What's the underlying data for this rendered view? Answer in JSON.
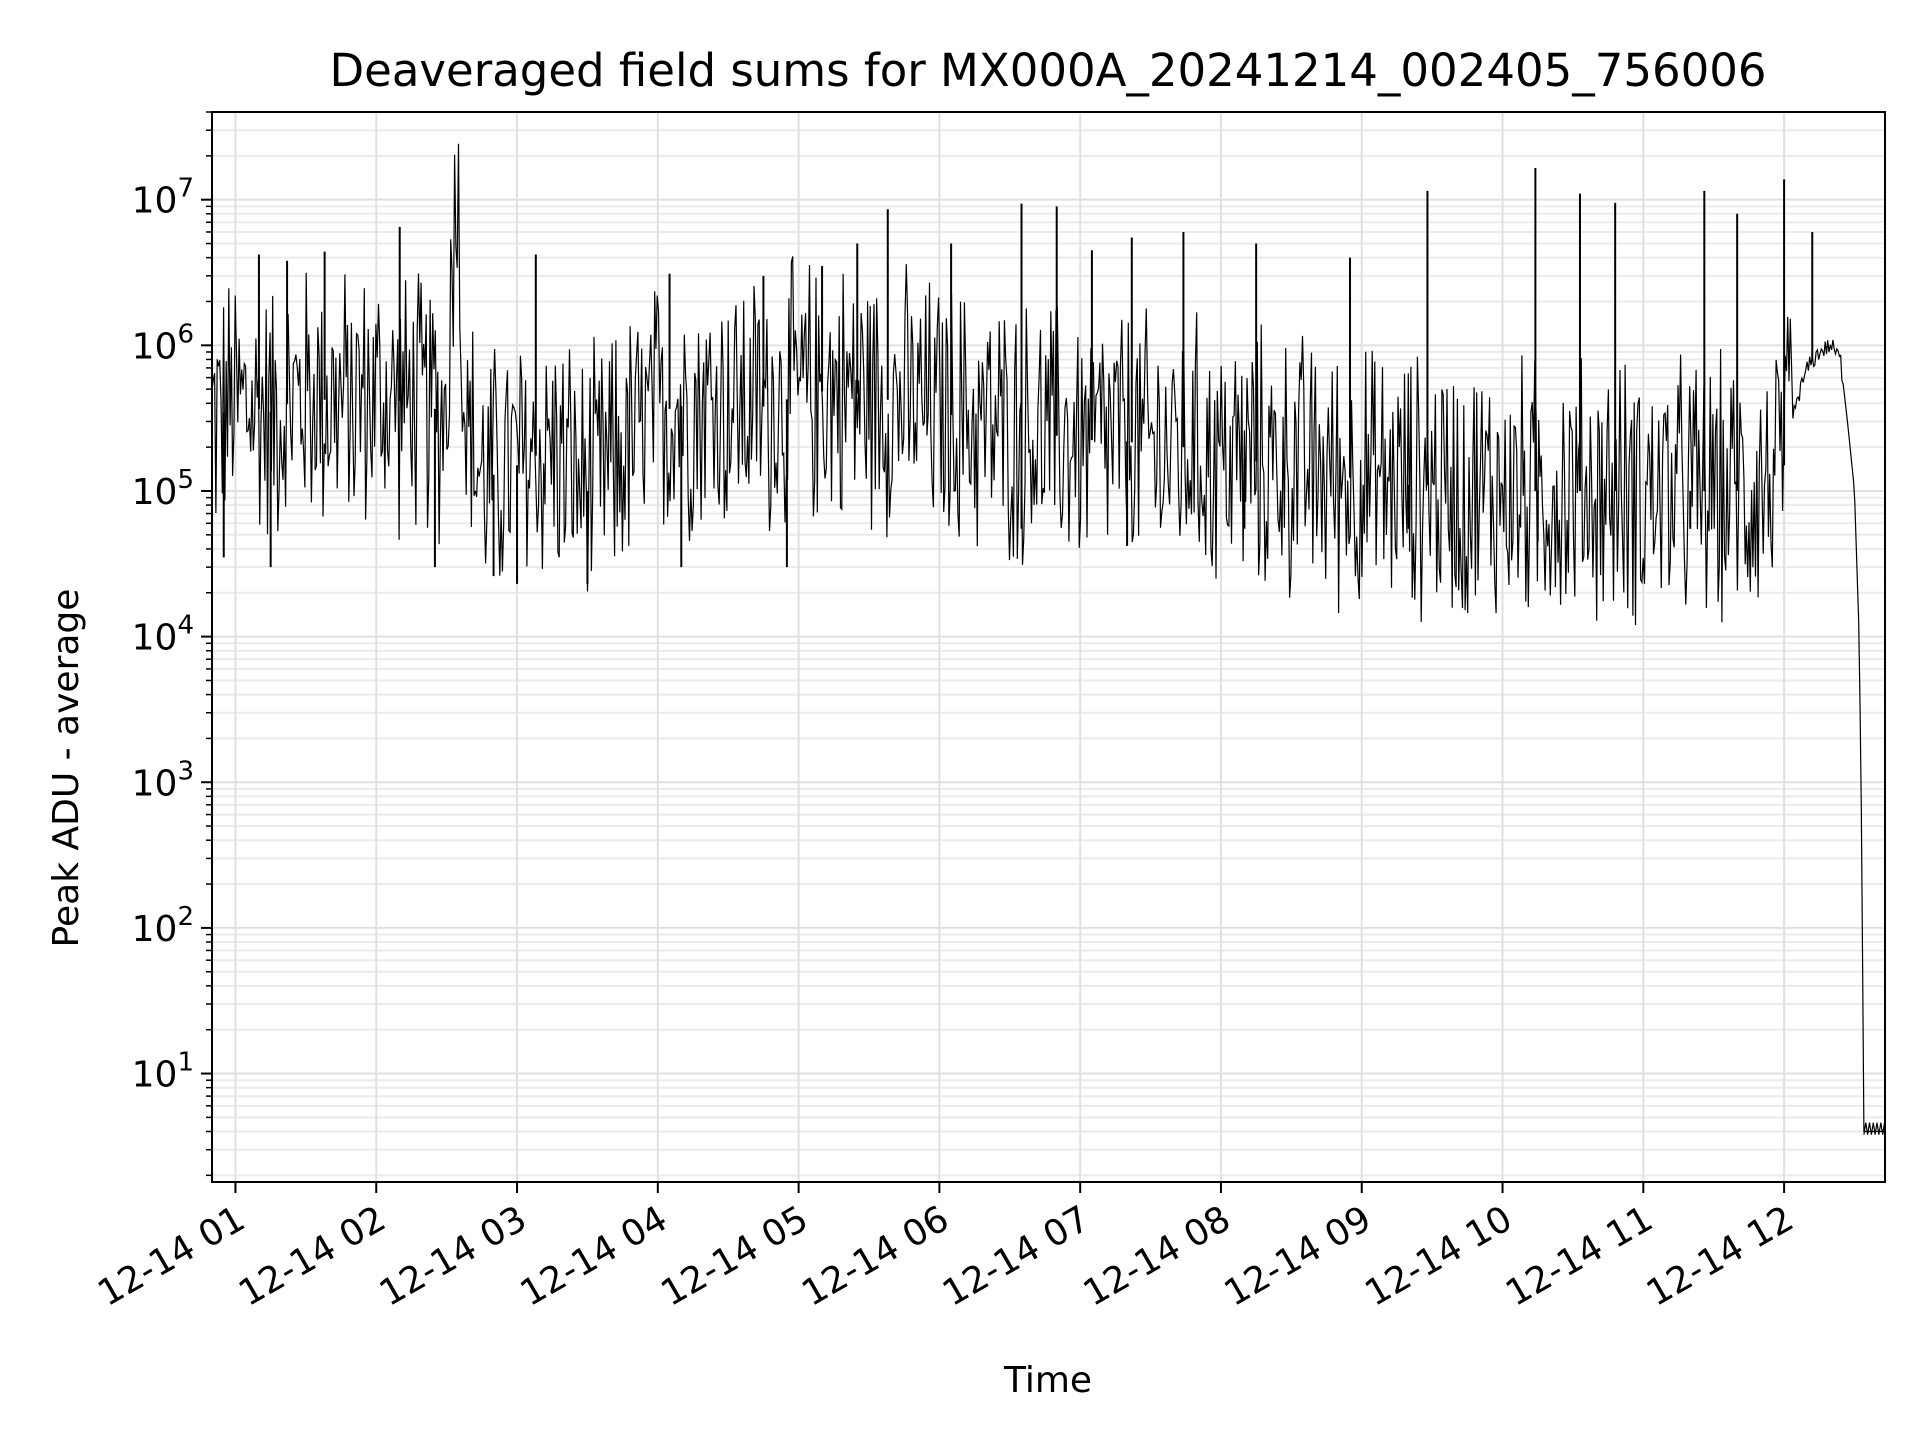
{
  "chart_data": {
    "type": "line",
    "title": "Deaveraged field sums for MX000A_20241214_002405_756006",
    "xlabel": "Time",
    "ylabel": "Peak ADU - average",
    "yscale": "log",
    "ylim": [
      1.8,
      40000000
    ],
    "xlim": [
      "2024-12-14 00:50",
      "2024-12-14 12:43"
    ],
    "grid": true,
    "x_ticks": [
      {
        "label": "12-14 01",
        "value": "2024-12-14 01:00"
      },
      {
        "label": "12-14 02",
        "value": "2024-12-14 02:00"
      },
      {
        "label": "12-14 03",
        "value": "2024-12-14 03:00"
      },
      {
        "label": "12-14 04",
        "value": "2024-12-14 04:00"
      },
      {
        "label": "12-14 05",
        "value": "2024-12-14 05:00"
      },
      {
        "label": "12-14 06",
        "value": "2024-12-14 06:00"
      },
      {
        "label": "12-14 07",
        "value": "2024-12-14 07:00"
      },
      {
        "label": "12-14 08",
        "value": "2024-12-14 08:00"
      },
      {
        "label": "12-14 09",
        "value": "2024-12-14 09:00"
      },
      {
        "label": "12-14 10",
        "value": "2024-12-14 10:00"
      },
      {
        "label": "12-14 11",
        "value": "2024-12-14 11:00"
      },
      {
        "label": "12-14 12",
        "value": "2024-12-14 12:00"
      }
    ],
    "y_ticks": [
      {
        "base": "10",
        "exp": "1",
        "value": 10
      },
      {
        "base": "10",
        "exp": "2",
        "value": 100
      },
      {
        "base": "10",
        "exp": "3",
        "value": 1000
      },
      {
        "base": "10",
        "exp": "4",
        "value": 10000
      },
      {
        "base": "10",
        "exp": "5",
        "value": 100000
      },
      {
        "base": "10",
        "exp": "6",
        "value": 1000000
      },
      {
        "base": "10",
        "exp": "7",
        "value": 10000000
      }
    ],
    "series": [
      {
        "color": "#000000",
        "points": [
          [
            "2024-12-14 00:50",
            300000
          ],
          [
            "2024-12-14 01:00",
            400000
          ],
          [
            "2024-12-14 01:15",
            350000
          ],
          [
            "2024-12-14 01:30",
            450000
          ],
          [
            "2024-12-14 01:45",
            400000
          ],
          [
            "2024-12-14 02:00",
            450000
          ],
          [
            "2024-12-14 02:15",
            400000
          ],
          [
            "2024-12-14 02:30",
            350000
          ],
          [
            "2024-12-14 02:34",
            20000000
          ],
          [
            "2024-12-14 02:38",
            300000
          ],
          [
            "2024-12-14 02:45",
            120000
          ],
          [
            "2024-12-14 03:00",
            150000
          ],
          [
            "2024-12-14 03:15",
            200000
          ],
          [
            "2024-12-14 03:30",
            100000
          ],
          [
            "2024-12-14 03:45",
            180000
          ],
          [
            "2024-12-14 04:00",
            350000
          ],
          [
            "2024-12-14 04:15",
            400000
          ],
          [
            "2024-12-14 04:30",
            400000
          ],
          [
            "2024-12-14 04:45",
            380000
          ],
          [
            "2024-12-14 05:00",
            450000
          ],
          [
            "2024-12-14 05:15",
            500000
          ],
          [
            "2024-12-14 05:30",
            450000
          ],
          [
            "2024-12-14 05:45",
            400000
          ],
          [
            "2024-12-14 06:00",
            350000
          ],
          [
            "2024-12-14 06:15",
            300000
          ],
          [
            "2024-12-14 06:30",
            250000
          ],
          [
            "2024-12-14 06:45",
            250000
          ],
          [
            "2024-12-14 07:00",
            220000
          ],
          [
            "2024-12-14 07:15",
            230000
          ],
          [
            "2024-12-14 07:30",
            200000
          ],
          [
            "2024-12-14 07:45",
            200000
          ],
          [
            "2024-12-14 08:00",
            170000
          ],
          [
            "2024-12-14 08:15",
            160000
          ],
          [
            "2024-12-14 08:30",
            150000
          ],
          [
            "2024-12-14 08:45",
            130000
          ],
          [
            "2024-12-14 09:00",
            120000
          ],
          [
            "2024-12-14 09:15",
            110000
          ],
          [
            "2024-12-14 09:30",
            110000
          ],
          [
            "2024-12-14 09:45",
            100000
          ],
          [
            "2024-12-14 10:00",
            100000
          ],
          [
            "2024-12-14 10:15",
            100000
          ],
          [
            "2024-12-14 10:30",
            100000
          ],
          [
            "2024-12-14 10:45",
            100000
          ],
          [
            "2024-12-14 11:00",
            100000
          ],
          [
            "2024-12-14 11:15",
            100000
          ],
          [
            "2024-12-14 11:30",
            100000
          ],
          [
            "2024-12-14 11:45",
            100000
          ],
          [
            "2024-12-14 12:00",
            150000
          ],
          [
            "2024-12-14 12:05",
            400000
          ],
          [
            "2024-12-14 12:10",
            700000
          ],
          [
            "2024-12-14 12:15",
            900000
          ],
          [
            "2024-12-14 12:20",
            1000000
          ],
          [
            "2024-12-14 12:24",
            800000
          ],
          [
            "2024-12-14 12:27",
            300000
          ],
          [
            "2024-12-14 12:30",
            100000
          ],
          [
            "2024-12-14 12:32",
            10000
          ],
          [
            "2024-12-14 12:33",
            500
          ],
          [
            "2024-12-14 12:34",
            4
          ],
          [
            "2024-12-14 12:43",
            4
          ]
        ],
        "spikes": [
          [
            "2024-12-14 01:10",
            4200000
          ],
          [
            "2024-12-14 01:22",
            3800000
          ],
          [
            "2024-12-14 01:38",
            4400000
          ],
          [
            "2024-12-14 02:10",
            6500000
          ],
          [
            "2024-12-14 02:34",
            20000000
          ],
          [
            "2024-12-14 03:08",
            4200000
          ],
          [
            "2024-12-14 04:05",
            3100000
          ],
          [
            "2024-12-14 04:45",
            3000000
          ],
          [
            "2024-12-14 05:10",
            3500000
          ],
          [
            "2024-12-14 05:25",
            5000000
          ],
          [
            "2024-12-14 05:38",
            8600000
          ],
          [
            "2024-12-14 06:05",
            5000000
          ],
          [
            "2024-12-14 06:35",
            9400000
          ],
          [
            "2024-12-14 06:50",
            9000000
          ],
          [
            "2024-12-14 07:05",
            4500000
          ],
          [
            "2024-12-14 07:22",
            5500000
          ],
          [
            "2024-12-14 07:44",
            6000000
          ],
          [
            "2024-12-14 08:15",
            5000000
          ],
          [
            "2024-12-14 08:55",
            4000000
          ],
          [
            "2024-12-14 09:28",
            11500000
          ],
          [
            "2024-12-14 10:14",
            16500000
          ],
          [
            "2024-12-14 10:33",
            11000000
          ],
          [
            "2024-12-14 10:48",
            9500000
          ],
          [
            "2024-12-14 11:26",
            11500000
          ],
          [
            "2024-12-14 11:40",
            8000000
          ],
          [
            "2024-12-14 12:00",
            13800000
          ],
          [
            "2024-12-14 12:12",
            6000000
          ]
        ],
        "dips": [
          [
            "2024-12-14 00:55",
            35000
          ],
          [
            "2024-12-14 01:15",
            30000
          ],
          [
            "2024-12-14 02:25",
            30000
          ],
          [
            "2024-12-14 02:50",
            26000
          ],
          [
            "2024-12-14 03:00",
            23000
          ],
          [
            "2024-12-14 03:30",
            23000
          ],
          [
            "2024-12-14 04:10",
            30000
          ],
          [
            "2024-12-14 04:55",
            30000
          ],
          [
            "2024-12-14 06:35",
            55000
          ],
          [
            "2024-12-14 07:20",
            42000
          ],
          [
            "2024-12-14 08:10",
            55000
          ],
          [
            "2024-12-14 09:20",
            55000
          ],
          [
            "2024-12-14 10:15",
            45000
          ],
          [
            "2024-12-14 11:20",
            55000
          ]
        ]
      }
    ]
  }
}
